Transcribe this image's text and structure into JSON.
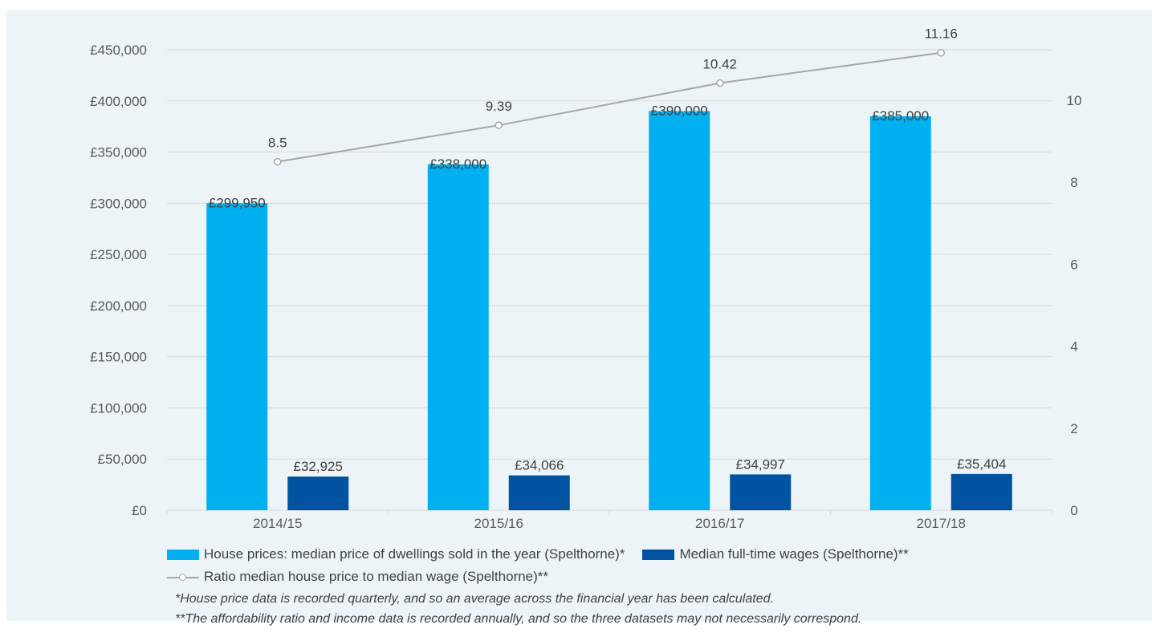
{
  "chart_data": {
    "type": "bar",
    "categories": [
      "2014/15",
      "2015/16",
      "2016/17",
      "2017/18"
    ],
    "series": [
      {
        "name": "House prices: median price of dwellings sold in the year (Spelthorne)*",
        "type": "bar",
        "axis": "left",
        "color": "#00b0f0",
        "values": [
          299950,
          338000,
          390000,
          385000
        ],
        "labels": [
          "£299,950",
          "£338,000",
          "£390,000",
          "£385,000"
        ]
      },
      {
        "name": "Median full-time wages (Spelthorne)**",
        "type": "bar",
        "axis": "left",
        "color": "#0053a0",
        "values": [
          32925,
          34066,
          34997,
          35404
        ],
        "labels": [
          "£32,925",
          "£34,066",
          "£34,997",
          "£35,404"
        ]
      },
      {
        "name": "Ratio median house price to median wage (Spelthorne)**",
        "type": "line",
        "axis": "right",
        "color": "#a6a6a6",
        "values": [
          8.5,
          9.39,
          10.42,
          11.16
        ],
        "labels": [
          "8.5",
          "9.39",
          "10.42",
          "11.16"
        ]
      }
    ],
    "y_left": {
      "ylim": [
        0,
        450000
      ],
      "ticks": [
        0,
        50000,
        100000,
        150000,
        200000,
        250000,
        300000,
        350000,
        400000,
        450000
      ],
      "tick_labels": [
        "£0",
        "£50,000",
        "£100,000",
        "£150,000",
        "£200,000",
        "£250,000",
        "£300,000",
        "£350,000",
        "£400,000",
        "£450,000"
      ]
    },
    "y_right": {
      "ylim": [
        0,
        12
      ],
      "ticks": [
        0,
        2,
        4,
        6,
        8,
        10
      ],
      "tick_labels": [
        "0",
        "2",
        "4",
        "6",
        "8",
        "10"
      ]
    },
    "grid": true,
    "legend": "bottom",
    "title": "",
    "xlabel": "",
    "ylabel": ""
  },
  "notes": [
    "*House price data is recorded quarterly, and so an average across the financial year has been calculated.",
    "**The affordability ratio and income data is recorded annually, and so the three datasets may not necessarily correspond."
  ],
  "colors": {
    "panel_background": "#edf4f8",
    "gridline": "#d9d9d9"
  }
}
